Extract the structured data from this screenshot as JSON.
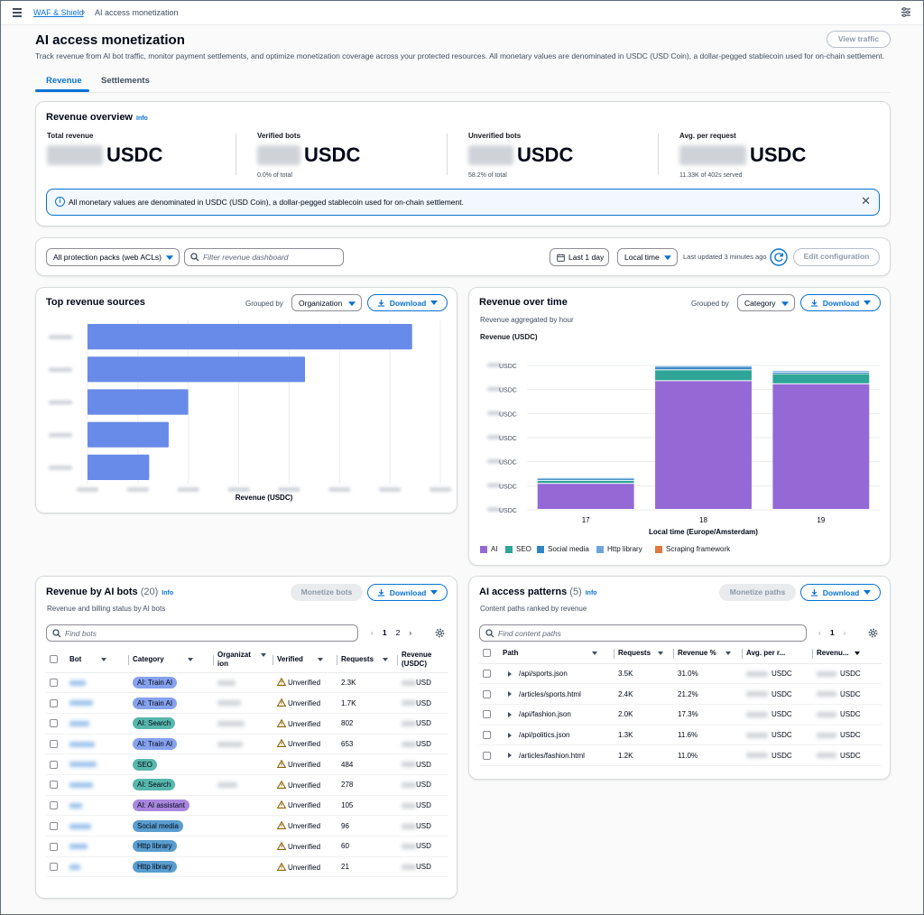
{
  "breadcrumb": {
    "parent": "WAF & Shield",
    "current": "AI access monetization"
  },
  "page": {
    "title": "AI access monetization",
    "description": "Track revenue from AI bot traffic, monitor payment settlements, and optimize monetization coverage across your protected resources. All monetary values are denominated in USDC (USD Coin), a dollar-pegged stablecoin used for on-chain settlement.",
    "view_traffic": "View traffic"
  },
  "tabs": [
    {
      "label": "Revenue"
    },
    {
      "label": "Settlements"
    }
  ],
  "overview": {
    "title": "Revenue overview",
    "info": "Info",
    "metrics": [
      {
        "label": "Total revenue",
        "unit": "USDC",
        "sub": ""
      },
      {
        "label": "Verified bots",
        "unit": "USDC",
        "sub": "0.0% of total"
      },
      {
        "label": "Unverified bots",
        "unit": "USDC",
        "sub": "58.2% of total"
      },
      {
        "label": "Avg. per request",
        "unit": "USDC",
        "sub": "11.33K of 402s served"
      }
    ],
    "alert": "All monetary values are denominated in USDC (USD Coin), a dollar-pegged stablecoin used for on-chain settlement."
  },
  "filters": {
    "protection_packs": "All protection packs (web ACLs)",
    "search_placeholder": "Filter revenue dashboard",
    "range": "Last 1 day",
    "timezone": "Local time",
    "updated": "Last updated 3 minutes ago",
    "edit": "Edit configuration"
  },
  "top_sources": {
    "title": "Top revenue sources",
    "grouped_by_label": "Grouped by",
    "grouped_by": "Organization",
    "download": "Download",
    "xlabel": "Revenue (USDC)"
  },
  "over_time": {
    "title": "Revenue over time",
    "subtitle": "Revenue aggregated by hour",
    "ylabel": "Revenue (USDC)",
    "grouped_by_label": "Grouped by",
    "grouped_by": "Category",
    "download": "Download",
    "xlabel": "Local time (Europe/Amsterdam)",
    "y_unit": "USDC"
  },
  "chart_data": [
    {
      "type": "bar",
      "orientation": "horizontal",
      "title": "Top revenue sources",
      "xlabel": "Revenue (USDC)",
      "categories": [
        "",
        "",
        "",
        "",
        ""
      ],
      "values": [
        100,
        67,
        31,
        25,
        19
      ],
      "color": "#688ae8",
      "grid": true
    },
    {
      "type": "bar",
      "stacked": true,
      "title": "Revenue over time",
      "xlabel": "Local time (Europe/Amsterdam)",
      "ylabel": "Revenue (USDC)",
      "categories": [
        "17",
        "18",
        "19"
      ],
      "ylim": [
        0,
        6
      ],
      "series": [
        {
          "name": "AI",
          "color": "#9469d6",
          "values": [
            1.08,
            5.35,
            5.22
          ]
        },
        {
          "name": "SEO",
          "color": "#2ea597",
          "values": [
            0.12,
            0.45,
            0.42
          ]
        },
        {
          "name": "Social media",
          "color": "#3184c2",
          "values": [
            0.07,
            0.12,
            0.06
          ]
        },
        {
          "name": "Http library",
          "color": "#6ca6d9",
          "values": [
            0.05,
            0.05,
            0.07
          ]
        },
        {
          "name": "Scraping framework",
          "color": "#e07941",
          "values": [
            0,
            0,
            0
          ]
        }
      ],
      "grid": true,
      "legend": "bottom"
    }
  ],
  "bots": {
    "title": "Revenue by AI bots",
    "count": "(20)",
    "info": "Info",
    "subtitle": "Revenue and billing status by AI bots",
    "monetize": "Monetize bots",
    "download": "Download",
    "search_placeholder": "Find bots",
    "pages": [
      "1",
      "2"
    ],
    "columns": [
      "Bot",
      "Category",
      "Organization",
      "Verified",
      "Requests",
      "Revenue (USDC)"
    ],
    "rows": [
      {
        "category": "AI: Train AI",
        "verified": "Unverified",
        "requests": "2.3K",
        "revenue": "USD"
      },
      {
        "category": "AI: Train AI",
        "verified": "Unverified",
        "requests": "1.7K",
        "revenue": "USD"
      },
      {
        "category": "AI: Search",
        "verified": "Unverified",
        "requests": "802",
        "revenue": "USD"
      },
      {
        "category": "AI: Train AI",
        "verified": "Unverified",
        "requests": "653",
        "revenue": "USD"
      },
      {
        "category": "SEO",
        "verified": "Unverified",
        "requests": "484",
        "revenue": "USD"
      },
      {
        "category": "AI: Search",
        "verified": "Unverified",
        "requests": "278",
        "revenue": "USD"
      },
      {
        "category": "AI: AI assistant",
        "verified": "Unverified",
        "requests": "105",
        "revenue": "USD"
      },
      {
        "category": "Social media",
        "verified": "Unverified",
        "requests": "96",
        "revenue": "USD"
      },
      {
        "category": "Http library",
        "verified": "Unverified",
        "requests": "60",
        "revenue": "USD"
      },
      {
        "category": "Http library",
        "verified": "Unverified",
        "requests": "21",
        "revenue": "USD"
      }
    ],
    "category_colors": {
      "AI: Train AI": "#688ae8",
      "AI: Search": "#2ea597",
      "SEO": "#2ea597",
      "AI: AI assistant": "#9469d6",
      "Social media": "#3184c2",
      "Http library": "#3184c2"
    }
  },
  "patterns": {
    "title": "AI access patterns",
    "count": "(5)",
    "info": "Info",
    "subtitle": "Content paths ranked by revenue",
    "monetize": "Monetize paths",
    "download": "Download",
    "search_placeholder": "Find content paths",
    "pages": [
      "1"
    ],
    "columns": [
      "Path",
      "Requests",
      "Revenue %",
      "Avg. per r...",
      "Revenu..."
    ],
    "rows": [
      {
        "path": "/api/sports.json",
        "requests": "3.5K",
        "pct": "31.0%",
        "avg": "USDC",
        "rev": "USDC"
      },
      {
        "path": "/articles/sports.html",
        "requests": "2.4K",
        "pct": "21.2%",
        "avg": "USDC",
        "rev": "USDC"
      },
      {
        "path": "/api/fashion.json",
        "requests": "2.0K",
        "pct": "17.3%",
        "avg": "USDC",
        "rev": "USDC"
      },
      {
        "path": "/api/politics.json",
        "requests": "1.3K",
        "pct": "11.6%",
        "avg": "USDC",
        "rev": "USDC"
      },
      {
        "path": "/articles/fashion.html",
        "requests": "1.2K",
        "pct": "11.0%",
        "avg": "USDC",
        "rev": "USDC"
      }
    ]
  }
}
